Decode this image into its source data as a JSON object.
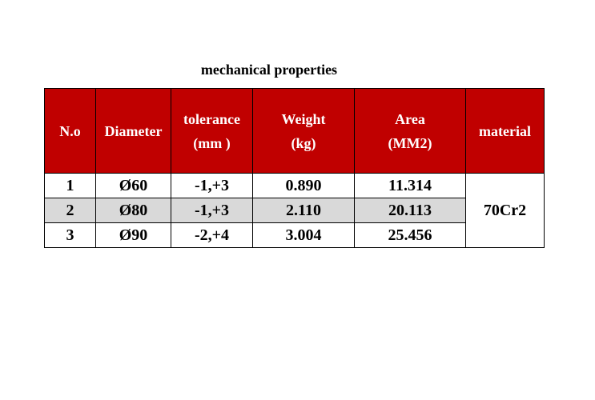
{
  "title": "mechanical properties",
  "colors": {
    "header_bg": "#c00000",
    "header_text": "#ffffff",
    "row_shade": "#d9d9d9"
  },
  "headers": {
    "no": "N.o",
    "diameter": "Diameter",
    "tolerance_line1": "tolerance",
    "tolerance_line2": "(mm )",
    "weight_line1": "Weight",
    "weight_line2": "(kg)",
    "area_line1": "Area",
    "area_line2": "(MM2)",
    "material": "material"
  },
  "rows": [
    {
      "no": "1",
      "diameter": "Ø60",
      "tolerance": "-1,+3",
      "weight": "0.890",
      "area": "11.314"
    },
    {
      "no": "2",
      "diameter": "Ø80",
      "tolerance": "-1,+3",
      "weight": "2.110",
      "area": "20.113"
    },
    {
      "no": "3",
      "diameter": "Ø90",
      "tolerance": "-2,+4",
      "weight": "3.004",
      "area": "25.456"
    }
  ],
  "material": "70Cr2"
}
